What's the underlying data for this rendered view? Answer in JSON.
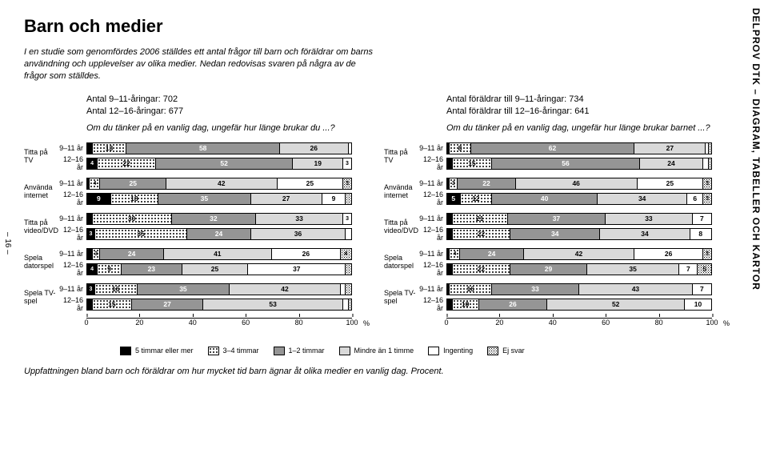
{
  "sideText": "DELPROV DTK – DIAGRAM, TABELLER OCH KARTOR",
  "pageNum": "– 16 –",
  "title": "Barn och medier",
  "intro": "I en studie som genomfördes 2006 ställdes ett antal frågor till barn och föräldrar om barns användning och upplevelser av olika medier. Nedan redovisas svaren på några av de frågor som ställdes.",
  "caption": "Uppfattningen bland barn och föräldrar om hur mycket tid barn ägnar åt olika medier en vanlig dag. Procent.",
  "legendItems": [
    {
      "label": "5 timmar eller mer",
      "cls": "f0"
    },
    {
      "label": "3–4 timmar",
      "cls": "f1"
    },
    {
      "label": "1–2 timmar",
      "cls": "f2"
    },
    {
      "label": "Mindre än 1 timme",
      "cls": "f3"
    },
    {
      "label": "Ingenting",
      "cls": "f4"
    },
    {
      "label": "Ej svar",
      "cls": "f5"
    }
  ],
  "panels": [
    {
      "meta": [
        "Antal 9–11-åringar: 702",
        "Antal 12–16-åringar: 677"
      ],
      "question": "Om du tänker på en vanlig dag, ungefär hur länge brukar du ...?"
    },
    {
      "meta": [
        "Antal föräldrar till 9–11-åringar: 734",
        "Antal föräldrar till 12–16-åringar: 641"
      ],
      "question": "Om du tänker på en vanlig dag, ungefär hur länge brukar barnet ...?"
    }
  ],
  "categories": [
    "Titta på TV",
    "Använda internet",
    "Titta på video/DVD",
    "Spela datorspel",
    "Spela TV-spel"
  ],
  "ages": [
    "9–11 år",
    "12–16 år"
  ],
  "ticks": [
    0,
    20,
    40,
    60,
    80,
    100
  ],
  "data": [
    [
      [
        [
          2,
          13,
          58,
          26,
          1,
          0
        ],
        [
          4,
          22,
          52,
          19,
          3,
          0
        ]
      ],
      [
        [
          1,
          4,
          25,
          42,
          25,
          3
        ],
        [
          9,
          18,
          35,
          27,
          9,
          2
        ]
      ],
      [
        [
          2,
          30,
          32,
          33,
          3,
          0
        ],
        [
          3,
          35,
          24,
          36,
          2,
          0
        ]
      ],
      [
        [
          2,
          3,
          24,
          41,
          26,
          4
        ],
        [
          4,
          9,
          23,
          25,
          37,
          2
        ]
      ],
      [
        [
          3,
          16,
          35,
          42,
          2,
          2
        ],
        [
          2,
          15,
          27,
          53,
          2,
          1
        ]
      ]
    ],
    [
      [
        [
          1,
          8,
          62,
          27,
          1,
          1
        ],
        [
          2,
          15,
          56,
          24,
          2,
          1
        ]
      ],
      [
        [
          1,
          3,
          22,
          46,
          25,
          3
        ],
        [
          5,
          12,
          40,
          34,
          6,
          3
        ]
      ],
      [
        [
          2,
          21,
          37,
          33,
          7,
          0
        ],
        [
          2,
          22,
          34,
          34,
          8,
          0
        ]
      ],
      [
        [
          1,
          4,
          24,
          42,
          26,
          3
        ],
        [
          2,
          22,
          29,
          35,
          7,
          5
        ]
      ],
      [
        [
          1,
          16,
          33,
          43,
          7,
          0
        ],
        [
          2,
          10,
          26,
          52,
          10,
          0
        ]
      ]
    ]
  ]
}
